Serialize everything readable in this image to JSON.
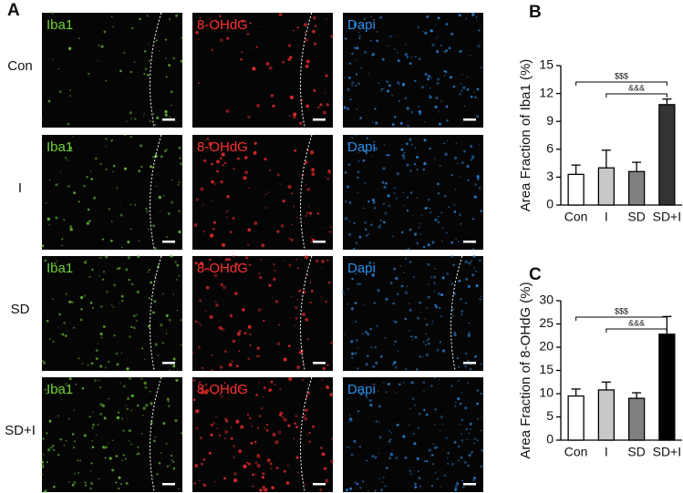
{
  "panels": {
    "A": "A",
    "B": "B",
    "C": "C"
  },
  "micrographs": {
    "rows": [
      "Con",
      "I",
      "SD",
      "SD+I"
    ],
    "columns": [
      "Iba1",
      "8-OHdG",
      "Dapi"
    ],
    "colors": [
      "#6fd13a",
      "#ff3030",
      "#2e8ee8"
    ]
  },
  "chart_data": [
    {
      "type": "bar",
      "y_label": "Area Fraction of Iba1 (%)",
      "categories": [
        "Con",
        "I",
        "SD",
        "SD+I"
      ],
      "values": [
        3.3,
        4.0,
        3.6,
        10.8
      ],
      "errors": [
        1.0,
        1.9,
        1.0,
        0.6
      ],
      "colors": [
        "#ffffff",
        "#c8c8c8",
        "#808080",
        "#333333"
      ],
      "ylim": [
        0,
        15
      ],
      "yticks": [
        0,
        3,
        6,
        9,
        12,
        15
      ],
      "annotations": [
        "$$$",
        "&&&"
      ]
    },
    {
      "type": "bar",
      "y_label": "Area Fraction of 8-OHdG (%)",
      "categories": [
        "Con",
        "I",
        "SD",
        "SD+I"
      ],
      "values": [
        9.5,
        10.8,
        9.0,
        22.8
      ],
      "errors": [
        1.5,
        1.7,
        1.2,
        3.8
      ],
      "colors": [
        "#ffffff",
        "#c8c8c8",
        "#808080",
        "#000000"
      ],
      "ylim": [
        0,
        30
      ],
      "yticks": [
        0,
        5,
        10,
        15,
        20,
        25,
        30
      ],
      "annotations": [
        "$$$",
        "&&&"
      ]
    }
  ]
}
